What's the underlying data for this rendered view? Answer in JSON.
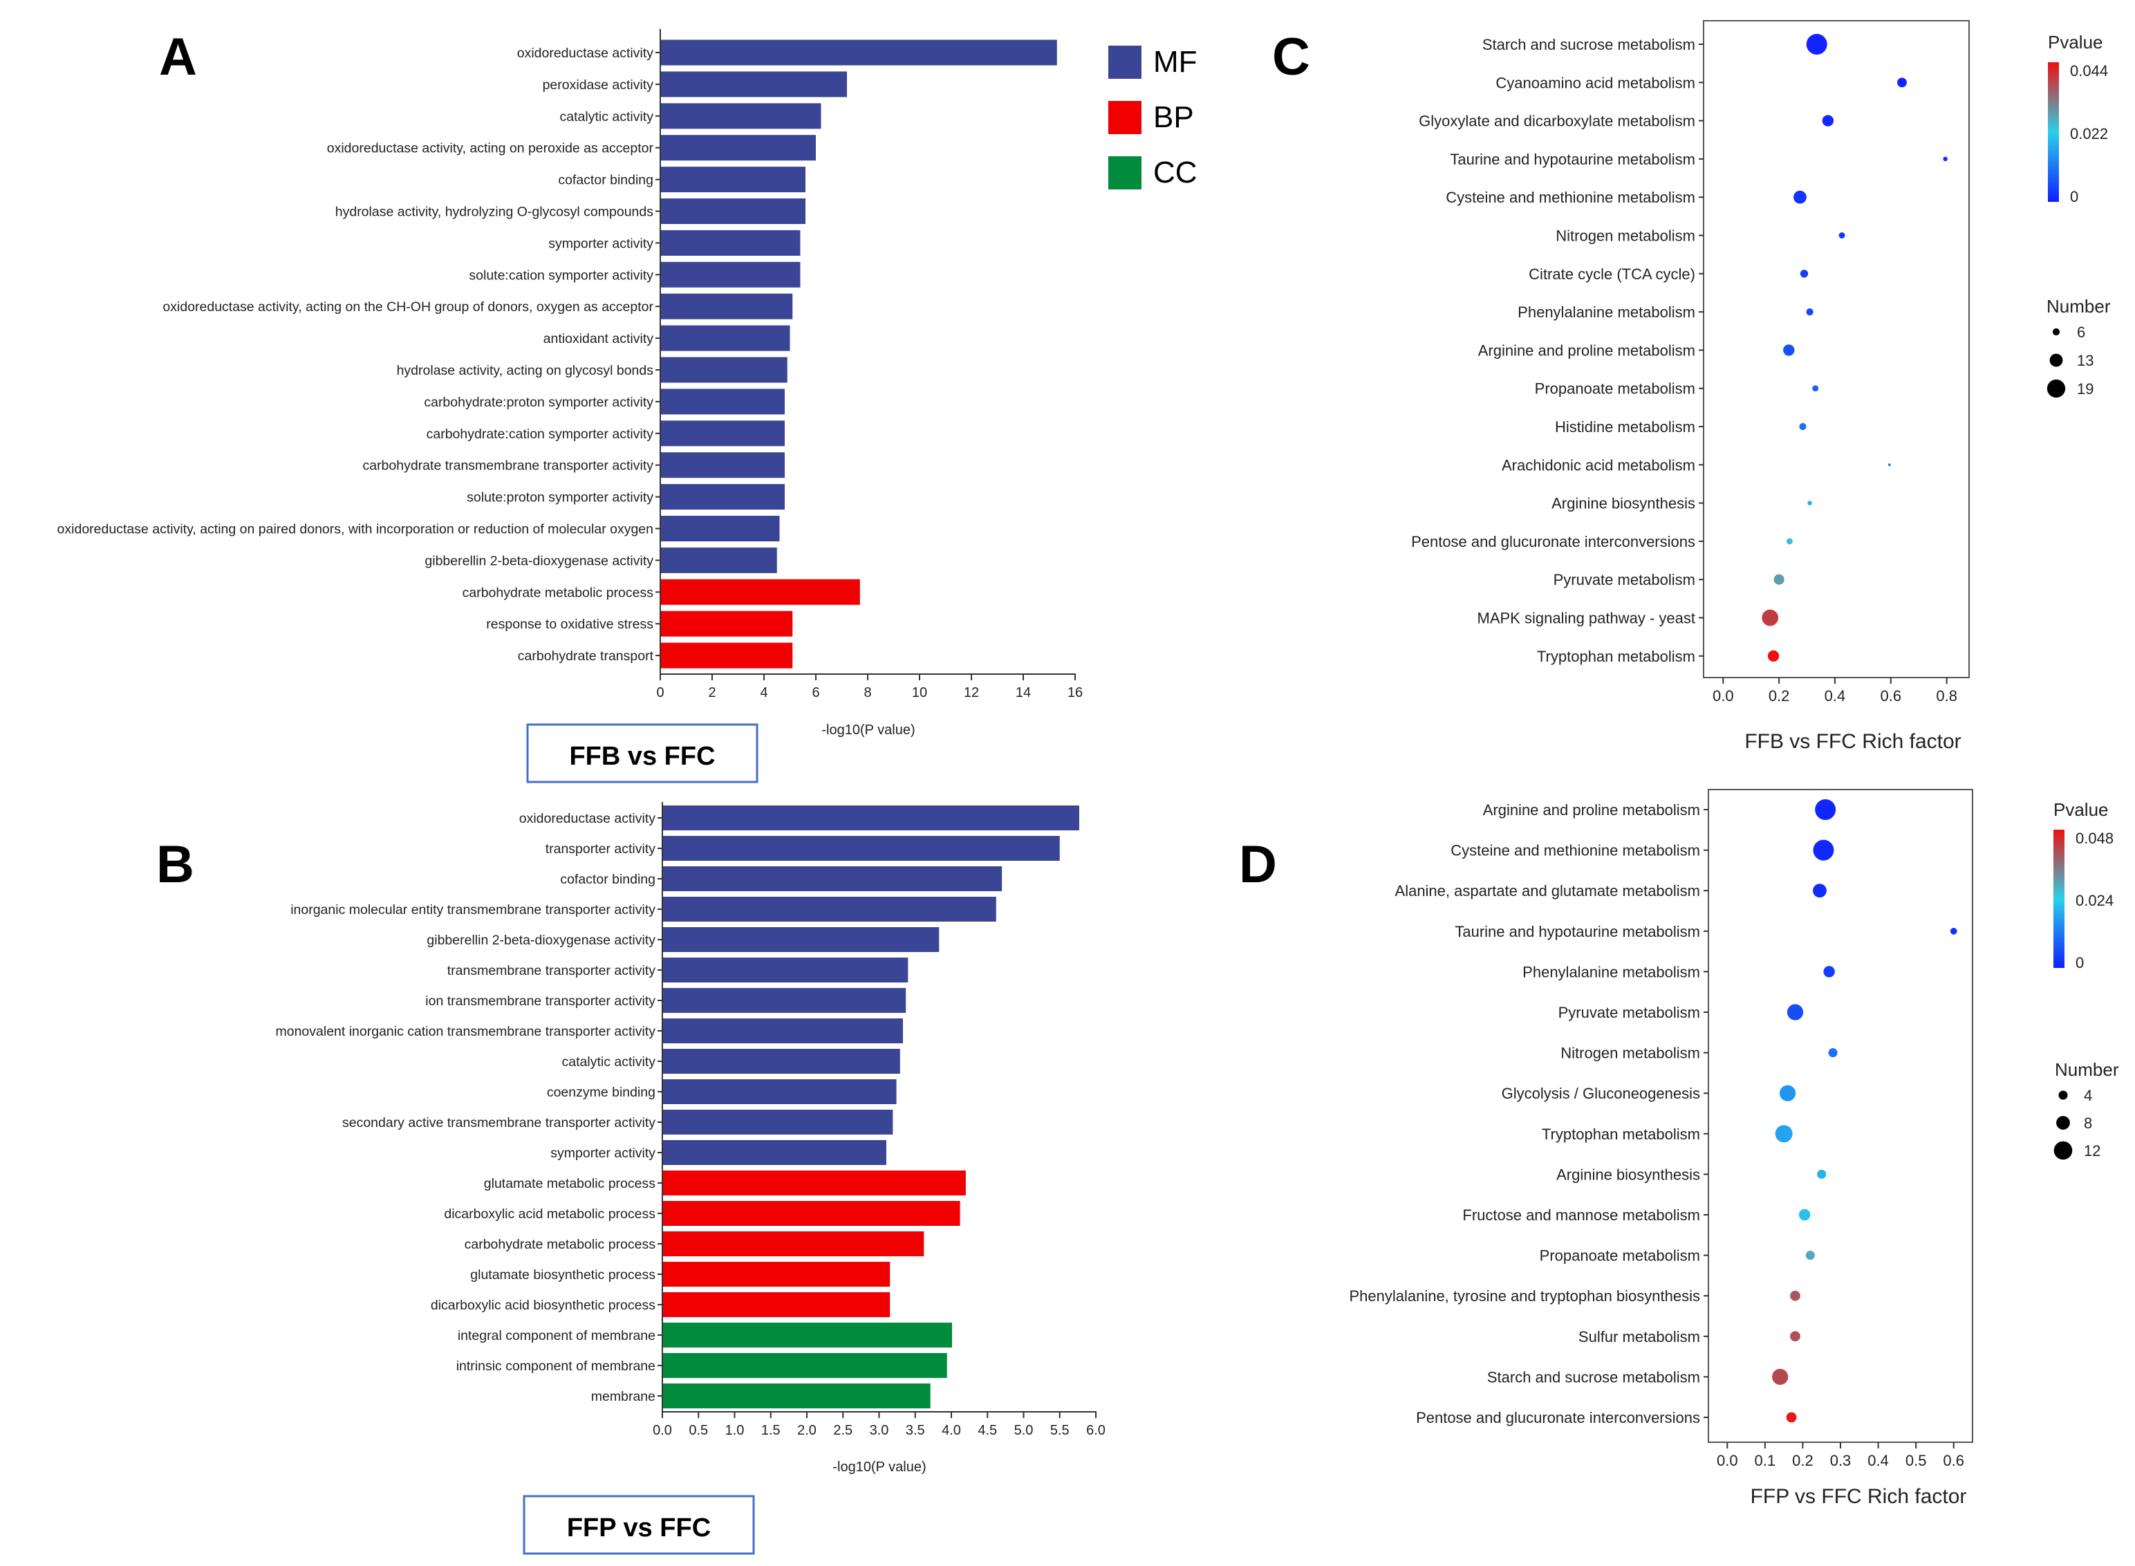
{
  "chart_data": [
    {
      "panel": "A",
      "type": "bar",
      "orientation": "horizontal",
      "title": "FFB vs FFC",
      "xlabel": "-log10(P value)",
      "xlim": [
        0,
        16
      ],
      "xticks": [
        0,
        2,
        4,
        6,
        8,
        10,
        12,
        14,
        16
      ],
      "legend": {
        "placement": "top-right",
        "entries": [
          {
            "key": "MF",
            "label": "MF",
            "color": "#3a4695"
          },
          {
            "key": "BP",
            "label": "BP",
            "color": "#f00000"
          },
          {
            "key": "CC",
            "label": "CC",
            "color": "#008c3c"
          }
        ]
      },
      "bars": [
        {
          "label": "oxidoreductase activity",
          "value": 15.3,
          "category": "MF"
        },
        {
          "label": "peroxidase activity",
          "value": 7.2,
          "category": "MF"
        },
        {
          "label": "catalytic activity",
          "value": 6.2,
          "category": "MF"
        },
        {
          "label": "oxidoreductase activity, acting on peroxide as acceptor",
          "value": 6.0,
          "category": "MF"
        },
        {
          "label": "cofactor binding",
          "value": 5.6,
          "category": "MF"
        },
        {
          "label": "hydrolase activity, hydrolyzing O-glycosyl compounds",
          "value": 5.6,
          "category": "MF"
        },
        {
          "label": "symporter activity",
          "value": 5.4,
          "category": "MF"
        },
        {
          "label": "solute:cation symporter activity",
          "value": 5.4,
          "category": "MF"
        },
        {
          "label": "oxidoreductase activity, acting on the CH-OH group of donors, oxygen as acceptor",
          "value": 5.1,
          "category": "MF"
        },
        {
          "label": "antioxidant activity",
          "value": 5.0,
          "category": "MF"
        },
        {
          "label": "hydrolase activity, acting on glycosyl bonds",
          "value": 4.9,
          "category": "MF"
        },
        {
          "label": "carbohydrate:proton symporter activity",
          "value": 4.8,
          "category": "MF"
        },
        {
          "label": "carbohydrate:cation symporter activity",
          "value": 4.8,
          "category": "MF"
        },
        {
          "label": "carbohydrate transmembrane transporter activity",
          "value": 4.8,
          "category": "MF"
        },
        {
          "label": "solute:proton symporter activity",
          "value": 4.8,
          "category": "MF"
        },
        {
          "label": "oxidoreductase activity, acting on paired donors, with incorporation or reduction of molecular oxygen",
          "value": 4.6,
          "category": "MF"
        },
        {
          "label": "gibberellin 2-beta-dioxygenase activity",
          "value": 4.5,
          "category": "MF"
        },
        {
          "label": "carbohydrate metabolic process",
          "value": 7.7,
          "category": "BP"
        },
        {
          "label": "response to oxidative stress",
          "value": 5.1,
          "category": "BP"
        },
        {
          "label": "carbohydrate transport",
          "value": 5.1,
          "category": "BP"
        }
      ]
    },
    {
      "panel": "B",
      "type": "bar",
      "orientation": "horizontal",
      "title": "FFP vs FFC",
      "xlabel": "-log10(P value)",
      "xlim": [
        0,
        6
      ],
      "xticks": [
        0,
        0.5,
        1,
        1.5,
        2,
        2.5,
        3,
        3.5,
        4,
        4.5,
        5,
        5.5,
        6
      ],
      "xticklabels": [
        "0.0",
        "0.5",
        "1.0",
        "1.5",
        "2.0",
        "2.5",
        "3.0",
        "3.5",
        "4.0",
        "4.5",
        "5.0",
        "5.5",
        "6.0"
      ],
      "bars": [
        {
          "label": "oxidoreductase activity",
          "value": 5.77,
          "category": "MF"
        },
        {
          "label": "transporter activity",
          "value": 5.5,
          "category": "MF"
        },
        {
          "label": "cofactor binding",
          "value": 4.7,
          "category": "MF"
        },
        {
          "label": "inorganic molecular entity transmembrane transporter activity",
          "value": 4.62,
          "category": "MF"
        },
        {
          "label": "gibberellin 2-beta-dioxygenase activity",
          "value": 3.83,
          "category": "MF"
        },
        {
          "label": "transmembrane transporter activity",
          "value": 3.4,
          "category": "MF"
        },
        {
          "label": "ion transmembrane transporter activity",
          "value": 3.37,
          "category": "MF"
        },
        {
          "label": "monovalent inorganic cation transmembrane transporter activity",
          "value": 3.33,
          "category": "MF"
        },
        {
          "label": "catalytic activity",
          "value": 3.29,
          "category": "MF"
        },
        {
          "label": "coenzyme binding",
          "value": 3.24,
          "category": "MF"
        },
        {
          "label": "secondary active transmembrane transporter activity",
          "value": 3.19,
          "category": "MF"
        },
        {
          "label": "symporter activity",
          "value": 3.1,
          "category": "MF"
        },
        {
          "label": "glutamate metabolic process",
          "value": 4.2,
          "category": "BP"
        },
        {
          "label": "dicarboxylic acid metabolic process",
          "value": 4.12,
          "category": "BP"
        },
        {
          "label": "carbohydrate metabolic process",
          "value": 3.62,
          "category": "BP"
        },
        {
          "label": "glutamate biosynthetic process",
          "value": 3.15,
          "category": "BP"
        },
        {
          "label": "dicarboxylic acid biosynthetic process",
          "value": 3.15,
          "category": "BP"
        },
        {
          "label": "integral component of membrane",
          "value": 4.01,
          "category": "CC"
        },
        {
          "label": "intrinsic component of membrane",
          "value": 3.94,
          "category": "CC"
        },
        {
          "label": "membrane",
          "value": 3.71,
          "category": "CC"
        }
      ]
    },
    {
      "panel": "C",
      "type": "scatter",
      "subtype": "bubble",
      "xlabel": "FFB vs FFC Rich factor",
      "xlim": [
        -0.07,
        0.88
      ],
      "xticks": [
        0,
        0.2,
        0.4,
        0.6,
        0.8
      ],
      "xticklabels": [
        "0.0",
        "0.2",
        "0.4",
        "0.6",
        "0.8"
      ],
      "color_legend": {
        "title": "Pvalue",
        "min": 0,
        "max": 0.044,
        "ticks": [
          "0.044",
          "0.022",
          "0"
        ]
      },
      "size_legend": {
        "title": "Number",
        "min": 1,
        "max": 22,
        "entries": [
          6,
          13,
          19
        ]
      },
      "points": [
        {
          "label": "Starch and sucrose metabolism",
          "x": 0.335,
          "number": 22,
          "pvalue": 0.0005
        },
        {
          "label": "Cyanoamino acid metabolism",
          "x": 0.64,
          "number": 9,
          "pvalue": 0.0008
        },
        {
          "label": "Glyoxylate and dicarboxylate metabolism",
          "x": 0.375,
          "number": 11,
          "pvalue": 0.001
        },
        {
          "label": "Taurine and hypotaurine metabolism",
          "x": 0.795,
          "number": 3,
          "pvalue": 0.002
        },
        {
          "label": "Cysteine and methionine metabolism",
          "x": 0.275,
          "number": 13,
          "pvalue": 0.0025
        },
        {
          "label": "Nitrogen metabolism",
          "x": 0.425,
          "number": 5,
          "pvalue": 0.003
        },
        {
          "label": "Citrate cycle (TCA cycle)",
          "x": 0.29,
          "number": 7,
          "pvalue": 0.004
        },
        {
          "label": "Phenylalanine metabolism",
          "x": 0.31,
          "number": 6,
          "pvalue": 0.005
        },
        {
          "label": "Arginine and proline metabolism",
          "x": 0.235,
          "number": 11,
          "pvalue": 0.006
        },
        {
          "label": "Propanoate metabolism",
          "x": 0.33,
          "number": 5,
          "pvalue": 0.008
        },
        {
          "label": "Histidine metabolism",
          "x": 0.285,
          "number": 6,
          "pvalue": 0.01
        },
        {
          "label": "Arachidonic acid metabolism",
          "x": 0.595,
          "number": 1,
          "pvalue": 0.012
        },
        {
          "label": "Arginine biosynthesis",
          "x": 0.31,
          "number": 3,
          "pvalue": 0.018
        },
        {
          "label": "Pentose and glucuronate interconversions",
          "x": 0.238,
          "number": 5,
          "pvalue": 0.024
        },
        {
          "label": "Pyruvate metabolism",
          "x": 0.2,
          "number": 10,
          "pvalue": 0.028
        },
        {
          "label": "MAPK signaling pathway - yeast",
          "x": 0.168,
          "number": 17,
          "pvalue": 0.039
        },
        {
          "label": "Tryptophan metabolism",
          "x": 0.18,
          "number": 11,
          "pvalue": 0.044
        }
      ]
    },
    {
      "panel": "D",
      "type": "scatter",
      "subtype": "bubble",
      "xlabel": "FFP vs FFC Rich factor",
      "xlim": [
        -0.05,
        0.65
      ],
      "xticks": [
        0,
        0.1,
        0.2,
        0.3,
        0.4,
        0.5,
        0.6
      ],
      "xticklabels": [
        "0.0",
        "0.1",
        "0.2",
        "0.3",
        "0.4",
        "0.5",
        "0.6"
      ],
      "color_legend": {
        "title": "Pvalue",
        "min": 0,
        "max": 0.048,
        "ticks": [
          "0.048",
          "0.024",
          "0"
        ]
      },
      "size_legend": {
        "title": "Number",
        "min": 1,
        "max": 14,
        "entries": [
          4,
          8,
          12
        ]
      },
      "points": [
        {
          "label": "Arginine and proline metabolism",
          "x": 0.26,
          "number": 14,
          "pvalue": 0.0008
        },
        {
          "label": "Cysteine and methionine metabolism",
          "x": 0.255,
          "number": 14,
          "pvalue": 0.001
        },
        {
          "label": "Alanine, aspartate and glutamate metabolism",
          "x": 0.245,
          "number": 8,
          "pvalue": 0.0015
        },
        {
          "label": "Taurine and hypotaurine metabolism",
          "x": 0.6,
          "number": 2,
          "pvalue": 0.002
        },
        {
          "label": "Phenylalanine metabolism",
          "x": 0.27,
          "number": 6,
          "pvalue": 0.004
        },
        {
          "label": "Pyruvate metabolism",
          "x": 0.18,
          "number": 10,
          "pvalue": 0.006
        },
        {
          "label": "Nitrogen metabolism",
          "x": 0.28,
          "number": 4,
          "pvalue": 0.011
        },
        {
          "label": "Glycolysis / Gluconeogenesis",
          "x": 0.16,
          "number": 10,
          "pvalue": 0.016
        },
        {
          "label": "Tryptophan metabolism",
          "x": 0.15,
          "number": 11,
          "pvalue": 0.018
        },
        {
          "label": "Arginine biosynthesis",
          "x": 0.25,
          "number": 4,
          "pvalue": 0.02
        },
        {
          "label": "Fructose and mannose metabolism",
          "x": 0.205,
          "number": 6,
          "pvalue": 0.022
        },
        {
          "label": "Propanoate metabolism",
          "x": 0.22,
          "number": 4,
          "pvalue": 0.029
        },
        {
          "label": "Phenylalanine, tyrosine and tryptophan biosynthesis",
          "x": 0.18,
          "number": 5,
          "pvalue": 0.039
        },
        {
          "label": "Sulfur metabolism",
          "x": 0.18,
          "number": 5,
          "pvalue": 0.04
        },
        {
          "label": "Starch and sucrose metabolism",
          "x": 0.14,
          "number": 10,
          "pvalue": 0.041
        },
        {
          "label": "Pentose and glucuronate interconversions",
          "x": 0.17,
          "number": 5,
          "pvalue": 0.047
        }
      ]
    }
  ]
}
